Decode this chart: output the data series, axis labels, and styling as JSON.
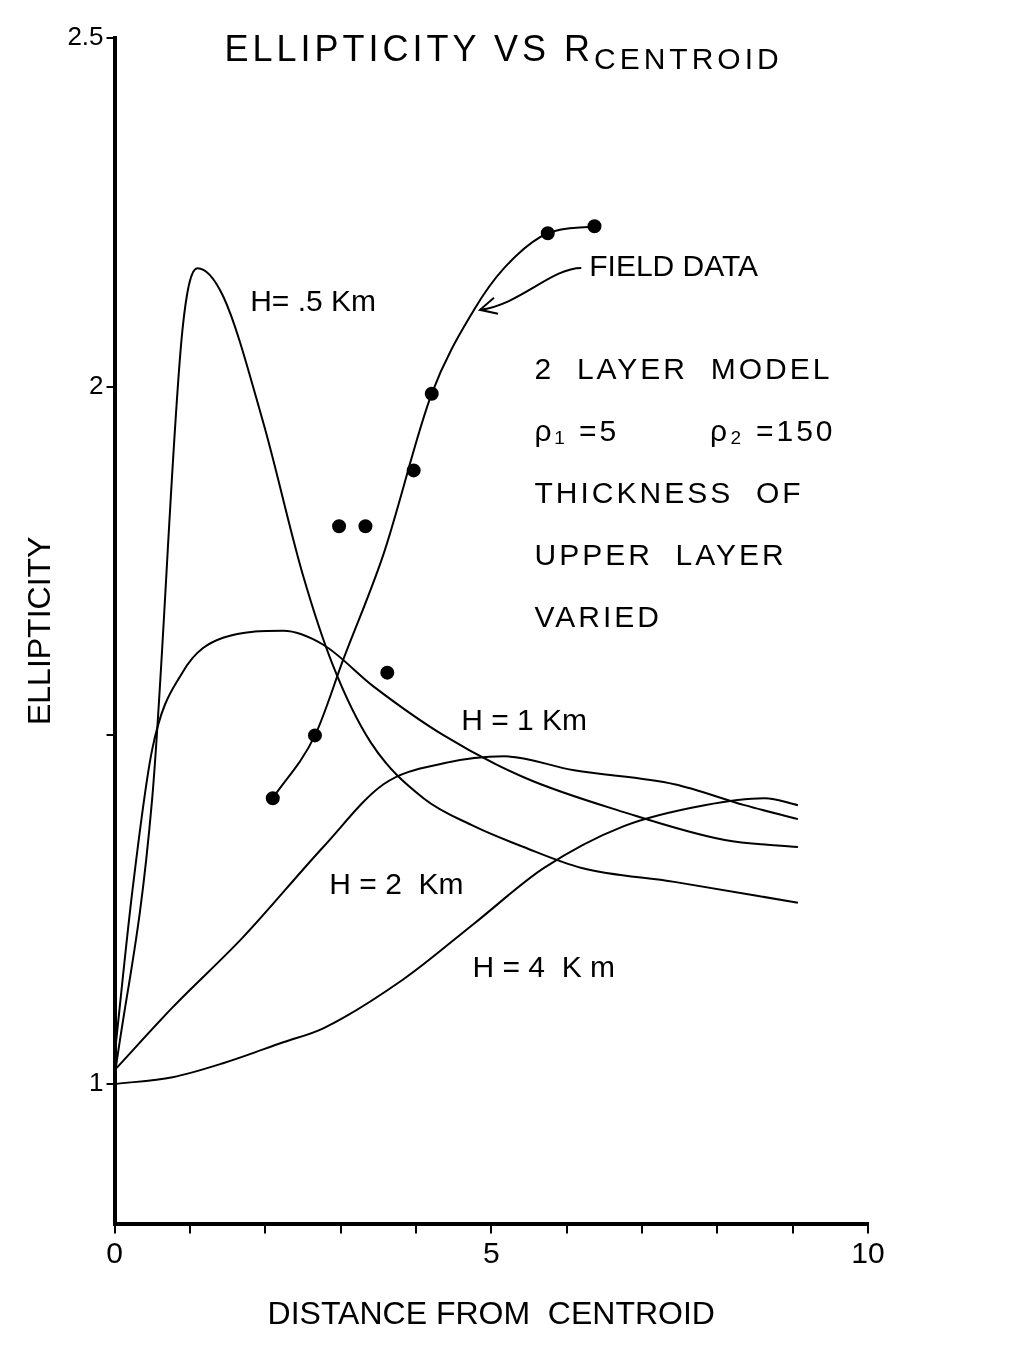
{
  "chart_data": {
    "type": "line",
    "title": "ELLIPTICITY VS R$_{CENTROID}$",
    "xlabel": "DISTANCE FROM  CENTROID",
    "ylabel": "ELLIPTICITY",
    "xlim": [
      0,
      10
    ],
    "xticks": [
      0,
      {
        "value": 1,
        "label": null
      },
      {
        "value": 2,
        "label": null
      },
      {
        "value": 3,
        "label": null
      },
      {
        "value": 4,
        "label": null
      },
      5,
      {
        "value": 6,
        "label": null
      },
      {
        "value": 7,
        "label": null
      },
      {
        "value": 8,
        "label": null
      },
      {
        "value": 9,
        "label": null
      },
      10
    ],
    "ylim": [
      0.8,
      2.5
    ],
    "yticks": [
      1,
      {
        "value": 1.5,
        "label": null
      },
      2,
      2.5
    ],
    "grid": false,
    "marker": "none",
    "line_style": "solid",
    "annotations": [
      "2  LAYER  MODEL",
      "ρ₁ =5        ρ₂ =150",
      "THICKNESS  OF",
      "UPPER  LAYER",
      "VARIED"
    ],
    "series": [
      {
        "name": "H= .5 Km",
        "color": "#000000",
        "x": [
          0,
          0.5,
          0.9,
          1.1,
          1.44,
          1.97,
          2.5,
          2.9,
          3.4,
          4.1,
          4.77,
          5.43,
          6.2,
          7.43,
          9.07
        ],
        "values": [
          1.01,
          1.41,
          2.08,
          2.17,
          2.13,
          1.95,
          1.73,
          1.6,
          1.49,
          1.41,
          1.37,
          1.34,
          1.31,
          1.29,
          1.26
        ]
      },
      {
        "name": "H = 1 Km",
        "color": "#000000",
        "x": [
          0,
          0.24,
          0.5,
          0.9,
          1.44,
          2.24,
          2.77,
          3.44,
          4.37,
          5.43,
          6.76,
          8.1,
          9.07
        ],
        "values": [
          1.04,
          1.28,
          1.48,
          1.59,
          1.64,
          1.65,
          1.63,
          1.57,
          1.5,
          1.44,
          1.39,
          1.35,
          1.34
        ]
      },
      {
        "name": "H = 2  Km",
        "color": "#000000",
        "x": [
          0,
          0.77,
          1.7,
          2.77,
          3.57,
          4.37,
          5.17,
          6.1,
          7.43,
          8.36,
          9.07
        ],
        "values": [
          1.02,
          1.11,
          1.21,
          1.34,
          1.43,
          1.46,
          1.47,
          1.45,
          1.43,
          1.4,
          1.38
        ]
      },
      {
        "name": "H = 4  K m",
        "color": "#000000",
        "x": [
          0,
          0.77,
          1.44,
          2.24,
          2.77,
          3.83,
          4.77,
          5.7,
          6.76,
          7.83,
          8.63,
          9.07
        ],
        "values": [
          1.0,
          1.01,
          1.03,
          1.06,
          1.08,
          1.15,
          1.23,
          1.31,
          1.37,
          1.4,
          1.41,
          1.4
        ]
      },
      {
        "name": "FIELD DATA",
        "color": "#000000",
        "x": [
          2.1,
          2.66,
          3.04,
          3.57,
          4.21,
          4.77,
          5.17,
          5.75,
          6.37
        ],
        "values": [
          1.41,
          1.5,
          1.61,
          1.76,
          1.99,
          2.11,
          2.17,
          2.22,
          2.23
        ]
      },
      {
        "type": "scatter",
        "marker": "circle",
        "color": "#000000",
        "x": [
          2.1,
          2.66,
          2.98,
          3.33,
          3.62,
          3.97,
          4.21,
          5.75,
          6.37
        ],
        "values": [
          1.41,
          1.5,
          1.8,
          1.8,
          1.59,
          1.88,
          1.99,
          2.22,
          2.23
        ]
      }
    ]
  }
}
